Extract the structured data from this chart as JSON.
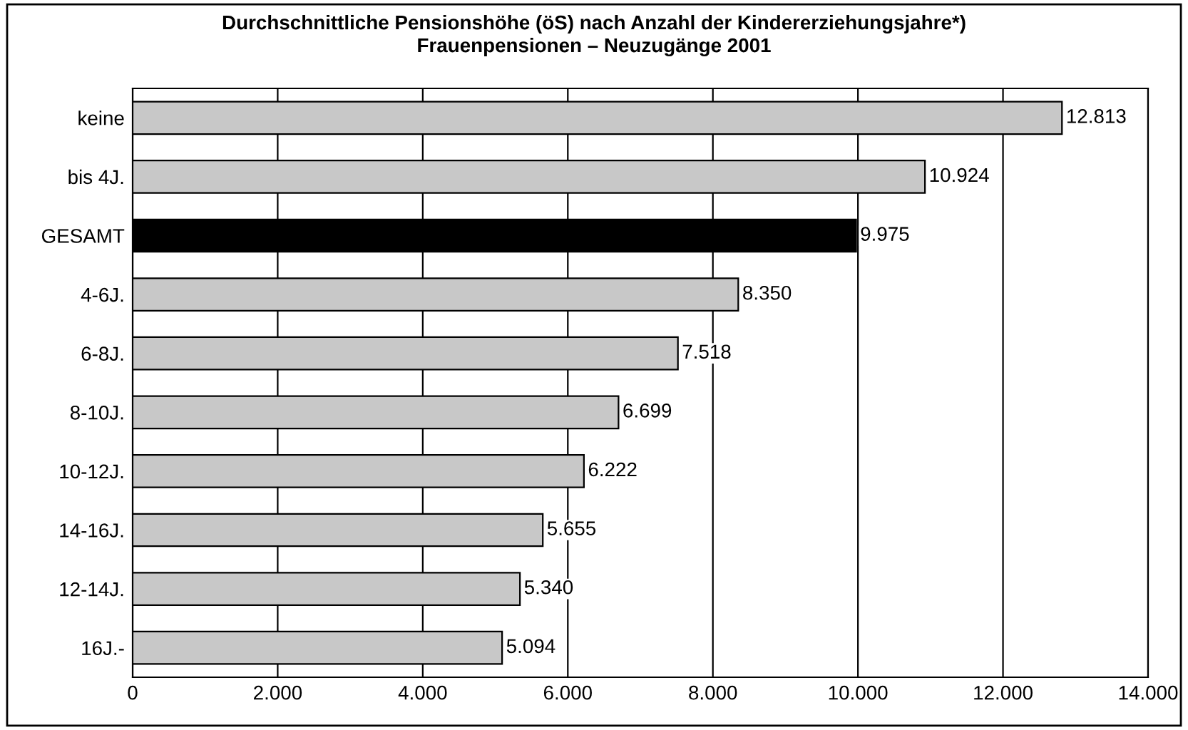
{
  "chart_data": {
    "type": "bar",
    "orientation": "horizontal",
    "title": "Durchschnittliche Pensionshöhe (öS) nach Anzahl der Kindererziehungsjahre*)",
    "subtitle": "Frauenpensionen – Neuzugänge 2001",
    "categories": [
      "keine",
      "bis 4J.",
      "GESAMT",
      "4-6J.",
      "6-8J.",
      "8-10J.",
      "10-12J.",
      "14-16J.",
      "12-14J.",
      "16J.-"
    ],
    "values": [
      12813,
      10924,
      9975,
      8350,
      7518,
      6699,
      6222,
      5655,
      5340,
      5094
    ],
    "colors": [
      "#c8c8c8",
      "#c8c8c8",
      "#000000",
      "#c8c8c8",
      "#c8c8c8",
      "#c8c8c8",
      "#c8c8c8",
      "#c8c8c8",
      "#c8c8c8",
      "#c8c8c8"
    ],
    "value_labels": [
      "12.813",
      "10.924",
      "9.975",
      "8.350",
      "7.518",
      "6.699",
      "6.222",
      "5.655",
      "5.340",
      "5.094"
    ],
    "xlim": [
      0,
      14000
    ],
    "xticks": [
      0,
      {
        "value": 2000,
        "label": "2.000"
      },
      {
        "value": 4000,
        "label": "4.000"
      },
      {
        "value": 6000,
        "label": "6.000"
      },
      {
        "value": 8000,
        "label": "8.000"
      },
      {
        "value": 10000,
        "label": "10.000"
      },
      {
        "value": 12000,
        "label": "12.000"
      },
      {
        "value": 14000,
        "label": "14.000"
      }
    ],
    "grid": "x"
  }
}
